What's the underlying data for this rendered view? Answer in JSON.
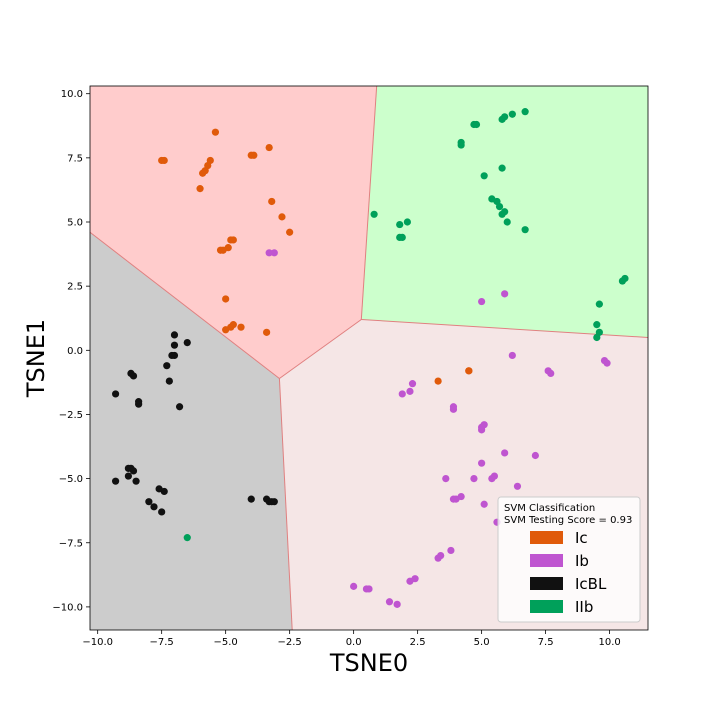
{
  "chart_data": {
    "type": "scatter",
    "title": "",
    "xlabel": "TSNE0",
    "ylabel": "TSNE1",
    "xlim": [
      -10.3,
      11.5
    ],
    "ylim": [
      -10.9,
      10.3
    ],
    "xticks": [
      -10.0,
      -7.5,
      -5.0,
      -2.5,
      0.0,
      2.5,
      5.0,
      7.5,
      10.0
    ],
    "xtick_labels": [
      "−10.0",
      "−7.5",
      "−5.0",
      "−2.5",
      "0.0",
      "2.5",
      "5.0",
      "7.5",
      "10.0"
    ],
    "yticks": [
      10.0,
      7.5,
      5.0,
      2.5,
      0.0,
      -2.5,
      -5.0,
      -7.5,
      -10.0
    ],
    "ytick_labels": [
      "10.0",
      "7.5",
      "5.0",
      "2.5",
      "0.0",
      "−2.5",
      "−5.0",
      "−7.5",
      "−10.0"
    ],
    "grid": false,
    "legend_position": "bottom-right",
    "legend_title": [
      "SVM Classification",
      "SVM Testing Score = 0.93"
    ],
    "regions": [
      {
        "class": "Ic",
        "color": "#ffcccc",
        "polygon": [
          [
            -10.3,
            10.3
          ],
          [
            0.9,
            10.3
          ],
          [
            0.3,
            1.2
          ],
          [
            -2.9,
            -1.1
          ],
          [
            -10.3,
            4.6
          ]
        ]
      },
      {
        "class": "IIb",
        "color": "#ccffcc",
        "polygon": [
          [
            0.9,
            10.3
          ],
          [
            11.5,
            10.3
          ],
          [
            11.5,
            0.5
          ],
          [
            0.3,
            1.2
          ]
        ]
      },
      {
        "class": "Ib",
        "color": "#f5e6e6",
        "polygon": [
          [
            0.3,
            1.2
          ],
          [
            11.5,
            0.5
          ],
          [
            11.5,
            -10.9
          ],
          [
            -2.4,
            -10.9
          ],
          [
            -2.9,
            -1.1
          ]
        ]
      },
      {
        "class": "IcBL",
        "color": "#cccccc",
        "polygon": [
          [
            -10.3,
            4.6
          ],
          [
            -2.9,
            -1.1
          ],
          [
            -2.4,
            -10.9
          ],
          [
            -10.3,
            -10.9
          ]
        ]
      }
    ],
    "boundary_color": "#e08080",
    "series": [
      {
        "name": "Ic",
        "color": "#e05a0a",
        "points": [
          [
            -5.4,
            8.5
          ],
          [
            -7.5,
            7.4
          ],
          [
            -7.4,
            7.4
          ],
          [
            -5.6,
            7.4
          ],
          [
            -5.7,
            7.2
          ],
          [
            -5.8,
            7.0
          ],
          [
            -5.9,
            6.9
          ],
          [
            -6.0,
            6.3
          ],
          [
            -4.0,
            7.6
          ],
          [
            -3.9,
            7.6
          ],
          [
            -3.3,
            7.9
          ],
          [
            -3.2,
            5.8
          ],
          [
            -2.8,
            5.2
          ],
          [
            -2.5,
            4.6
          ],
          [
            -4.8,
            4.3
          ],
          [
            -4.7,
            4.3
          ],
          [
            -4.9,
            4.0
          ],
          [
            -5.1,
            3.9
          ],
          [
            -5.2,
            3.9
          ],
          [
            -5.0,
            2.0
          ],
          [
            -4.7,
            1.0
          ],
          [
            -4.4,
            0.9
          ],
          [
            -4.8,
            0.9
          ],
          [
            -5.0,
            0.8
          ],
          [
            -3.4,
            0.7
          ],
          [
            3.3,
            -1.2
          ],
          [
            4.5,
            -0.8
          ],
          [
            4.5,
            -0.8
          ]
        ]
      },
      {
        "name": "Ib",
        "color": "#bf55d0",
        "points": [
          [
            -3.3,
            3.8
          ],
          [
            -3.1,
            3.8
          ],
          [
            5.0,
            1.9
          ],
          [
            5.9,
            2.2
          ],
          [
            6.2,
            -0.2
          ],
          [
            7.6,
            -0.8
          ],
          [
            7.7,
            -0.9
          ],
          [
            9.8,
            -0.4
          ],
          [
            9.9,
            -0.5
          ],
          [
            2.3,
            -1.3
          ],
          [
            2.2,
            -1.6
          ],
          [
            1.9,
            -1.7
          ],
          [
            3.9,
            -2.2
          ],
          [
            3.9,
            -2.3
          ],
          [
            5.1,
            -2.9
          ],
          [
            5.0,
            -3.0
          ],
          [
            5.0,
            -3.1
          ],
          [
            5.9,
            -4.0
          ],
          [
            7.1,
            -4.1
          ],
          [
            5.0,
            -4.4
          ],
          [
            5.5,
            -4.9
          ],
          [
            5.4,
            -5.0
          ],
          [
            4.7,
            -5.0
          ],
          [
            3.6,
            -5.0
          ],
          [
            6.4,
            -5.3
          ],
          [
            4.2,
            -5.7
          ],
          [
            4.0,
            -5.8
          ],
          [
            3.9,
            -5.8
          ],
          [
            5.1,
            -6.0
          ],
          [
            5.6,
            -6.7
          ],
          [
            3.4,
            -8.0
          ],
          [
            3.3,
            -8.1
          ],
          [
            3.8,
            -7.8
          ],
          [
            2.4,
            -8.9
          ],
          [
            2.2,
            -9.0
          ],
          [
            0.0,
            -9.2
          ],
          [
            0.5,
            -9.3
          ],
          [
            0.6,
            -9.3
          ],
          [
            1.4,
            -9.8
          ],
          [
            1.7,
            -9.9
          ]
        ]
      },
      {
        "name": "IcBL",
        "color": "#111111",
        "points": [
          [
            -7.0,
            0.6
          ],
          [
            -6.5,
            0.3
          ],
          [
            -7.0,
            0.2
          ],
          [
            -7.0,
            -0.2
          ],
          [
            -7.1,
            -0.2
          ],
          [
            -7.3,
            -0.6
          ],
          [
            -7.2,
            -1.2
          ],
          [
            -8.7,
            -0.9
          ],
          [
            -8.6,
            -1.0
          ],
          [
            -9.3,
            -1.7
          ],
          [
            -8.4,
            -2.0
          ],
          [
            -8.4,
            -2.1
          ],
          [
            -6.8,
            -2.2
          ],
          [
            -8.8,
            -4.6
          ],
          [
            -8.7,
            -4.6
          ],
          [
            -8.6,
            -4.7
          ],
          [
            -8.8,
            -4.9
          ],
          [
            -8.5,
            -5.1
          ],
          [
            -9.3,
            -5.1
          ],
          [
            -7.6,
            -5.4
          ],
          [
            -7.4,
            -5.5
          ],
          [
            -8.0,
            -5.9
          ],
          [
            -7.8,
            -6.1
          ],
          [
            -7.5,
            -6.3
          ],
          [
            -4.0,
            -5.8
          ],
          [
            -3.4,
            -5.8
          ],
          [
            -3.3,
            -5.9
          ],
          [
            -3.2,
            -5.9
          ],
          [
            -3.1,
            -5.9
          ]
        ]
      },
      {
        "name": "IIb",
        "color": "#00a05a",
        "points": [
          [
            6.7,
            9.3
          ],
          [
            6.2,
            9.2
          ],
          [
            5.9,
            9.1
          ],
          [
            5.8,
            9.0
          ],
          [
            4.8,
            8.8
          ],
          [
            4.7,
            8.8
          ],
          [
            4.2,
            8.1
          ],
          [
            4.2,
            8.0
          ],
          [
            5.8,
            7.1
          ],
          [
            5.1,
            6.8
          ],
          [
            0.8,
            5.3
          ],
          [
            5.4,
            5.9
          ],
          [
            5.6,
            5.8
          ],
          [
            5.7,
            5.6
          ],
          [
            5.9,
            5.4
          ],
          [
            5.8,
            5.3
          ],
          [
            6.0,
            5.0
          ],
          [
            6.7,
            4.7
          ],
          [
            2.1,
            5.0
          ],
          [
            1.8,
            4.9
          ],
          [
            1.8,
            4.4
          ],
          [
            1.9,
            4.4
          ],
          [
            10.5,
            2.7
          ],
          [
            10.6,
            2.8
          ],
          [
            9.6,
            1.8
          ],
          [
            9.5,
            1.0
          ],
          [
            9.6,
            0.7
          ],
          [
            9.5,
            0.5
          ],
          [
            -6.5,
            -7.3
          ]
        ]
      }
    ]
  }
}
